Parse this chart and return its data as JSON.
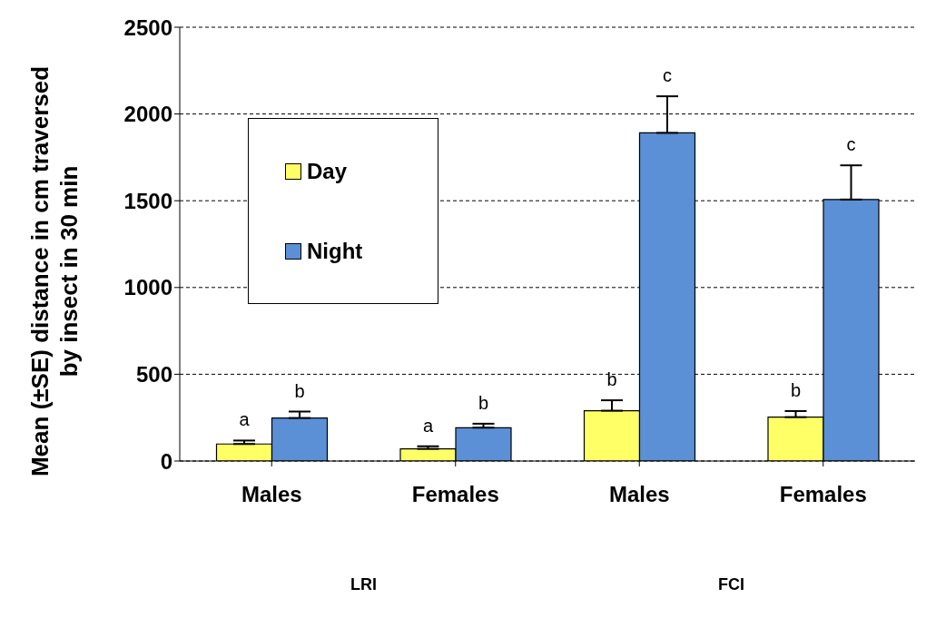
{
  "chart_data": {
    "type": "bar",
    "ylabel": "Mean (±SE) distance in cm traversed\nby insect in 30 min",
    "categories": [
      "Males",
      "Females",
      "Males",
      "Females"
    ],
    "series": [
      {
        "name": "Day",
        "color": "#ffff66",
        "values": [
          98,
          70,
          290,
          253
        ],
        "errors": [
          20,
          15,
          60,
          35
        ],
        "value_labels": [
          "a",
          "a",
          "b",
          "b"
        ]
      },
      {
        "name": "Night",
        "color": "#5b8fd6",
        "values": [
          248,
          192,
          1891,
          1507
        ],
        "errors": [
          37,
          23,
          211,
          197
        ],
        "value_labels": [
          "b",
          "b",
          "c",
          "c"
        ]
      }
    ],
    "ylim": [
      0,
      2500
    ],
    "yticks": [
      0,
      500,
      1000,
      1500,
      2000,
      2500
    ],
    "grid": "y",
    "legend": "top left",
    "annotations": [
      "LRI",
      "FCI"
    ]
  }
}
